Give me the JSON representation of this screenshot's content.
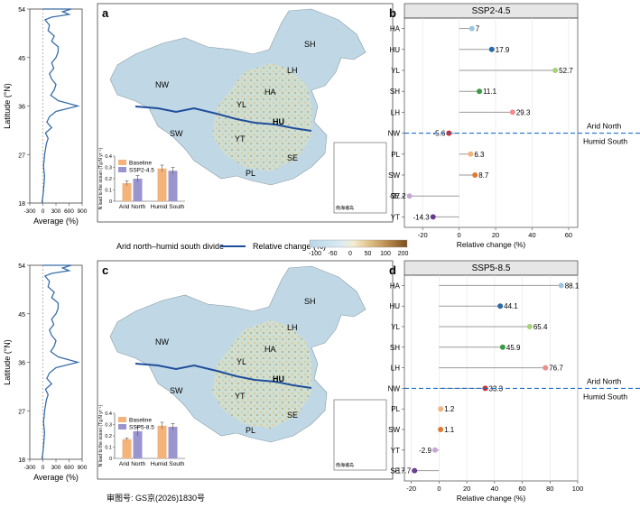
{
  "figure": {
    "colors": {
      "river": "#1f4e9c",
      "divide": "#1f6fd0",
      "profile": "#3a6ea8",
      "baseline": "#f4b37a",
      "scenario": "#9a94cf",
      "map_land": "#bfd6e3"
    },
    "legend_row": {
      "divide_label": "Arid north–humid south divide",
      "relchange_label": "Relative change (%)",
      "scale_ticks": [
        "-100",
        "-50",
        "0",
        "50",
        "100",
        "200"
      ]
    },
    "footer_text": "审图号: GS京(2026)1830号"
  },
  "chart_data": [
    {
      "panel": "a",
      "type": "map",
      "regions": [
        "SH",
        "NW",
        "LH",
        "HA",
        "YL",
        "HU",
        "SW",
        "YT",
        "SE",
        "PL"
      ],
      "inset_label": "南海诸岛"
    },
    {
      "panel": "a-inset",
      "type": "bar",
      "ylabel": "N load to the ocean (Tg N yr⁻¹)",
      "yticks": [
        "0",
        "0.1",
        "0.2",
        "0.3",
        "0.4"
      ],
      "ylim": [
        0,
        0.4
      ],
      "categories": [
        "Arid North",
        "Humid South"
      ],
      "series": [
        {
          "name": "Baseline",
          "values": [
            0.16,
            0.29
          ],
          "errors": [
            0.02,
            0.03
          ]
        },
        {
          "name": "SSP2-4.5",
          "values": [
            0.2,
            0.27
          ],
          "errors": [
            0.03,
            0.03
          ]
        }
      ]
    },
    {
      "panel": "c",
      "type": "map",
      "regions": [
        "SH",
        "NW",
        "LH",
        "HA",
        "YL",
        "HU",
        "SW",
        "YT",
        "SE",
        "PL"
      ],
      "inset_label": "南海诸岛"
    },
    {
      "panel": "c-inset",
      "type": "bar",
      "ylabel": "N load to the ocean (Tg N yr⁻¹)",
      "yticks": [
        "0",
        "0.1",
        "0.2",
        "0.3",
        "0.4"
      ],
      "ylim": [
        0,
        0.4
      ],
      "categories": [
        "Arid North",
        "Humid South"
      ],
      "series": [
        {
          "name": "Baseline",
          "values": [
            0.17,
            0.29
          ],
          "errors": [
            0.01,
            0.03
          ]
        },
        {
          "name": "SSP5-8.5",
          "values": [
            0.24,
            0.28
          ],
          "errors": [
            0.04,
            0.03
          ]
        }
      ]
    },
    {
      "panel": "profile-top",
      "type": "line",
      "xlabel": "Average (%)",
      "ylabel": "Latitude (°N)",
      "xticks": [
        "-300",
        "0",
        "300",
        "600",
        "900"
      ],
      "yticks": [
        "18",
        "27",
        "36",
        "45",
        "54"
      ],
      "xlim": [
        -300,
        900
      ],
      "ylim": [
        18,
        54
      ],
      "x": [
        -20,
        -5,
        10,
        20,
        30,
        40,
        25,
        15,
        30,
        40,
        60,
        80,
        120,
        60,
        200,
        90,
        150,
        300,
        800,
        350,
        180,
        260,
        300,
        200,
        150,
        250,
        200,
        300,
        350,
        350,
        200,
        260,
        120,
        150,
        50,
        200,
        600,
        450,
        650,
        200,
        100,
        0
      ],
      "y": [
        18,
        19,
        20,
        21,
        22,
        23,
        24,
        25,
        26,
        27,
        28,
        29,
        30,
        31,
        32,
        33,
        34,
        35,
        36,
        37,
        38,
        39,
        40,
        41,
        42,
        43,
        44,
        45,
        46,
        47,
        48,
        49,
        50,
        51,
        52,
        52.5,
        53,
        53.5,
        54,
        54.5,
        55,
        55.5
      ]
    },
    {
      "panel": "profile-bottom",
      "type": "line",
      "xlabel": "Average (%)",
      "ylabel": "Latitude (°N)",
      "xticks": [
        "-300",
        "0",
        "300",
        "600",
        "900"
      ],
      "yticks": [
        "18",
        "27",
        "36",
        "45",
        "54"
      ],
      "xlim": [
        -300,
        900
      ],
      "ylim": [
        18,
        54
      ],
      "x": [
        -20,
        -5,
        10,
        20,
        30,
        40,
        25,
        15,
        30,
        40,
        60,
        80,
        120,
        60,
        200,
        90,
        150,
        300,
        800,
        350,
        180,
        260,
        300,
        200,
        150,
        250,
        200,
        300,
        350,
        350,
        200,
        260,
        120,
        150,
        50,
        200,
        600,
        450,
        650,
        200,
        100,
        0
      ],
      "y": [
        18,
        19,
        20,
        21,
        22,
        23,
        24,
        25,
        26,
        27,
        28,
        29,
        30,
        31,
        32,
        33,
        34,
        35,
        36,
        37,
        38,
        39,
        40,
        41,
        42,
        43,
        44,
        45,
        46,
        47,
        48,
        49,
        50,
        51,
        52,
        52.5,
        53,
        53.5,
        54,
        54.5,
        55,
        55.5
      ]
    },
    {
      "panel": "b",
      "type": "scatter",
      "title": "SSP2-4.5",
      "xlabel": "Relative change (%)",
      "xlim": [
        -30,
        65
      ],
      "xticks": [
        -20,
        0,
        20,
        40,
        60
      ],
      "categories": [
        "HA",
        "HU",
        "YL",
        "SH",
        "LH",
        "NW",
        "PL",
        "SW",
        "SE",
        "YT"
      ],
      "values": [
        7,
        17.9,
        52.7,
        11.1,
        29.3,
        -5.6,
        6.3,
        8.7,
        -27.2,
        -14.3
      ],
      "value_labels": [
        "7",
        "17.9",
        "52.7",
        "11.1",
        "29.3",
        "-5.6",
        "6.3",
        "8.7",
        "-27.2",
        "-14.3"
      ],
      "point_colors": [
        "#9cc7e4",
        "#2a6aa8",
        "#a6d27a",
        "#3a9a44",
        "#f08c8c",
        "#d32d2d",
        "#f4b37a",
        "#e07b2e",
        "#c5a8d8",
        "#6b3c93"
      ],
      "annotations": [
        "Arid North",
        "Humid South"
      ]
    },
    {
      "panel": "d",
      "type": "scatter",
      "title": "SSP5-8.5",
      "xlabel": "Relative change (%)",
      "xlim": [
        -25,
        100
      ],
      "xticks": [
        -20,
        0,
        20,
        40,
        60,
        80,
        100
      ],
      "categories": [
        "HA",
        "HU",
        "YL",
        "SH",
        "LH",
        "NW",
        "PL",
        "SW",
        "YT",
        "SE"
      ],
      "values": [
        88.1,
        44.1,
        65.4,
        45.9,
        76.7,
        33.3,
        1.2,
        1.1,
        -2.9,
        -17.7
      ],
      "value_labels": [
        "88.1",
        "44.1",
        "65.4",
        "45.9",
        "76.7",
        "33.3",
        "1.2",
        "1.1",
        "-2.9",
        "-17.7"
      ],
      "point_colors": [
        "#9cc7e4",
        "#2a6aa8",
        "#a6d27a",
        "#3a9a44",
        "#f08c8c",
        "#d32d2d",
        "#f4b37a",
        "#e07b2e",
        "#c5a8d8",
        "#6b3c93"
      ],
      "annotations": [
        "Arid North",
        "Humid South"
      ]
    }
  ]
}
